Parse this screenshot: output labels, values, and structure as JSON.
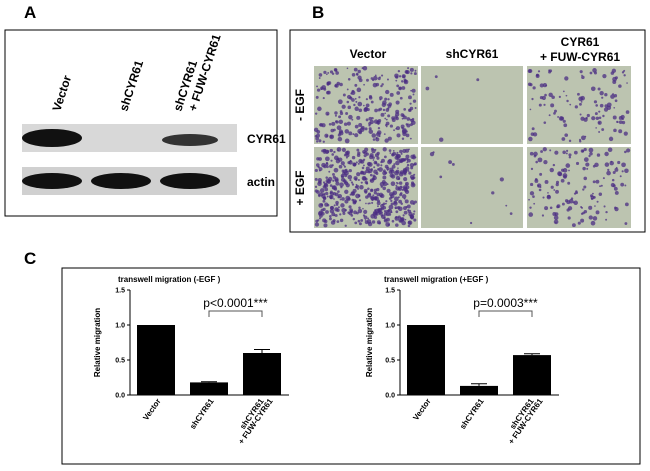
{
  "panel_a": {
    "label": "A",
    "lanes": [
      "Vector",
      "shCYR61",
      [
        "shCYR61",
        "+ FUW-CYR61"
      ]
    ],
    "rows": [
      "CYR61",
      "actin"
    ]
  },
  "panel_b": {
    "label": "B",
    "columns": [
      "Vector",
      "shCYR61",
      [
        "CYR61",
        "+ FUW-CYR61"
      ]
    ],
    "rows": [
      "- EGF",
      "+ EGF"
    ]
  },
  "panel_c": {
    "label": "C"
  },
  "chart_data": [
    {
      "type": "bar",
      "title": "transwell migration (-EGF )",
      "y_label": "Relative migration",
      "categories": [
        "Vector",
        "shCYR61",
        [
          "shCYR61",
          "+ FUW-CYR61"
        ]
      ],
      "values": [
        1.0,
        0.18,
        0.6
      ],
      "errors": [
        0,
        0.01,
        0.05
      ],
      "color": "#000000",
      "ylim": [
        0,
        1.5
      ],
      "yticks": [
        {
          "value": 0,
          "label": "0.0"
        },
        {
          "value": 0.5,
          "label": "0.5"
        },
        {
          "value": 1.0,
          "label": "1.0"
        },
        {
          "value": 1.5,
          "label": "1.5"
        }
      ],
      "annotation": "p<0.0001***"
    },
    {
      "type": "bar",
      "title": "transwell migration (+EGF )",
      "y_label": "Relative migration",
      "categories": [
        "Vector",
        "shCYR61",
        [
          "shCYR61",
          "+ FUW-CYR61"
        ]
      ],
      "values": [
        1.0,
        0.13,
        0.57
      ],
      "errors": [
        0,
        0.03,
        0.02
      ],
      "color": "#000000",
      "ylim": [
        0,
        1.5
      ],
      "yticks": [
        {
          "value": 0,
          "label": "0.0"
        },
        {
          "value": 0.5,
          "label": "0.5"
        },
        {
          "value": 1.0,
          "label": "1.0"
        },
        {
          "value": 1.5,
          "label": "1.5"
        }
      ],
      "annotation": "p=0.0003***"
    }
  ]
}
